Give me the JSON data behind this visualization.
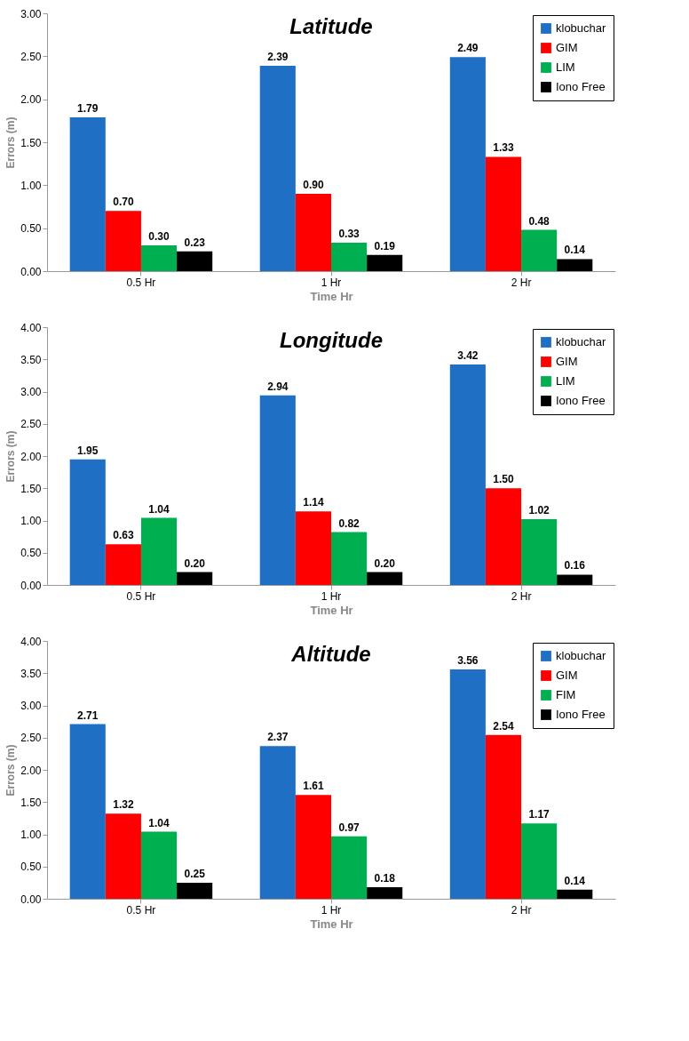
{
  "chart_data": [
    {
      "type": "bar",
      "title": "Latitude",
      "xlabel": "Time Hr",
      "ylabel": "Errors (m)",
      "categories": [
        "0.5 Hr",
        "1 Hr",
        "2 Hr"
      ],
      "ylim": [
        0,
        3
      ],
      "yticks": [
        {
          "value": 0,
          "label": "0.00"
        },
        {
          "value": 0.5,
          "label": "0.50"
        },
        {
          "value": 1,
          "label": "1.00"
        },
        {
          "value": 1.5,
          "label": "1.50"
        },
        {
          "value": 2,
          "label": "2.00"
        },
        {
          "value": 2.5,
          "label": "2.50"
        },
        {
          "value": 3,
          "label": "3.00"
        }
      ],
      "legend": "top right",
      "series": [
        {
          "name": "klobuchar",
          "color": "#1f6fc5",
          "values": [
            1.79,
            2.39,
            2.49
          ],
          "value_labels": [
            "1.79",
            "2.39",
            "2.49"
          ]
        },
        {
          "name": "GIM",
          "color": "#ff0000",
          "values": [
            0.7,
            0.9,
            1.33
          ],
          "value_labels": [
            "0.70",
            "0.90",
            "1.33"
          ]
        },
        {
          "name": "LIM",
          "color": "#00b050",
          "values": [
            0.3,
            0.33,
            0.48
          ],
          "value_labels": [
            "0.30",
            "0.33",
            "0.48"
          ]
        },
        {
          "name": "Iono Free",
          "color": "#000000",
          "values": [
            0.23,
            0.19,
            0.14
          ],
          "value_labels": [
            "0.23",
            "0.19",
            "0.14"
          ]
        }
      ]
    },
    {
      "type": "bar",
      "title": "Longitude",
      "xlabel": "Time Hr",
      "ylabel": "Errors (m)",
      "categories": [
        "0.5 Hr",
        "1 Hr",
        "2 Hr"
      ],
      "ylim": [
        0,
        4
      ],
      "yticks": [
        {
          "value": 0,
          "label": "0.00"
        },
        {
          "value": 0.5,
          "label": "0.50"
        },
        {
          "value": 1,
          "label": "1.00"
        },
        {
          "value": 1.5,
          "label": "1.50"
        },
        {
          "value": 2,
          "label": "2.00"
        },
        {
          "value": 2.5,
          "label": "2.50"
        },
        {
          "value": 3,
          "label": "3.00"
        },
        {
          "value": 3.5,
          "label": "3.50"
        },
        {
          "value": 4,
          "label": "4.00"
        }
      ],
      "legend": "top right",
      "series": [
        {
          "name": "klobuchar",
          "color": "#1f6fc5",
          "values": [
            1.95,
            2.94,
            3.42
          ],
          "value_labels": [
            "1.95",
            "2.94",
            "3.42"
          ]
        },
        {
          "name": "GIM",
          "color": "#ff0000",
          "values": [
            0.63,
            1.14,
            1.5
          ],
          "value_labels": [
            "0.63",
            "1.14",
            "1.50"
          ]
        },
        {
          "name": "LIM",
          "color": "#00b050",
          "values": [
            1.04,
            0.82,
            1.02
          ],
          "value_labels": [
            "1.04",
            "0.82",
            "1.02"
          ]
        },
        {
          "name": "Iono Free",
          "color": "#000000",
          "values": [
            0.2,
            0.2,
            0.16
          ],
          "value_labels": [
            "0.20",
            "0.20",
            "0.16"
          ]
        }
      ]
    },
    {
      "type": "bar",
      "title": "Altitude",
      "xlabel": "Time Hr",
      "ylabel": "Errors (m)",
      "categories": [
        "0.5 Hr",
        "1 Hr",
        "2 Hr"
      ],
      "ylim": [
        0,
        4
      ],
      "yticks": [
        {
          "value": 0,
          "label": "0.00"
        },
        {
          "value": 0.5,
          "label": "0.50"
        },
        {
          "value": 1,
          "label": "1.00"
        },
        {
          "value": 1.5,
          "label": "1.50"
        },
        {
          "value": 2,
          "label": "2.00"
        },
        {
          "value": 2.5,
          "label": "2.50"
        },
        {
          "value": 3,
          "label": "3.00"
        },
        {
          "value": 3.5,
          "label": "3.50"
        },
        {
          "value": 4,
          "label": "4.00"
        }
      ],
      "legend": "top right",
      "series": [
        {
          "name": "klobuchar",
          "color": "#1f6fc5",
          "values": [
            2.71,
            2.37,
            3.56
          ],
          "value_labels": [
            "2.71",
            "2.37",
            "3.56"
          ]
        },
        {
          "name": "GIM",
          "color": "#ff0000",
          "values": [
            1.32,
            1.61,
            2.54
          ],
          "value_labels": [
            "1.32",
            "1.61",
            "2.54"
          ]
        },
        {
          "name": "FIM",
          "color": "#00b050",
          "values": [
            1.04,
            0.97,
            1.17
          ],
          "value_labels": [
            "1.04",
            "0.97",
            "1.17"
          ]
        },
        {
          "name": "Iono Free",
          "color": "#000000",
          "values": [
            0.25,
            0.18,
            0.14
          ],
          "value_labels": [
            "0.25",
            "0.18",
            "0.14"
          ]
        }
      ]
    }
  ]
}
